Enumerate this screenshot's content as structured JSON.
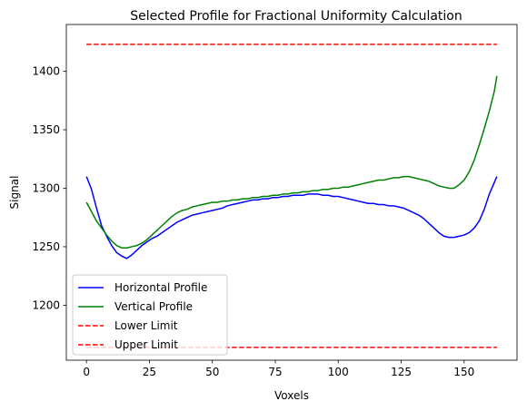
{
  "chart_data": {
    "type": "line",
    "title": "Selected Profile for Fractional Uniformity Calculation",
    "xlabel": "Voxels",
    "ylabel": "Signal",
    "xlim": [
      -8,
      171
    ],
    "ylim": [
      1153,
      1440
    ],
    "xticks": [
      0,
      25,
      50,
      75,
      100,
      125,
      150
    ],
    "yticks": [
      1200,
      1250,
      1300,
      1350,
      1400
    ],
    "grid": false,
    "legend_position": "lower-left",
    "series": [
      {
        "name": "Horizontal Profile",
        "color": "#0000ff",
        "style": "solid",
        "x": [
          0,
          2,
          4,
          6,
          8,
          10,
          12,
          14,
          16,
          18,
          20,
          22,
          24,
          26,
          28,
          30,
          32,
          34,
          36,
          38,
          40,
          42,
          44,
          46,
          48,
          50,
          52,
          54,
          56,
          58,
          60,
          62,
          64,
          66,
          68,
          70,
          72,
          74,
          76,
          78,
          80,
          82,
          84,
          86,
          88,
          90,
          92,
          94,
          96,
          98,
          100,
          102,
          104,
          106,
          108,
          110,
          112,
          114,
          116,
          118,
          120,
          122,
          124,
          126,
          128,
          130,
          132,
          134,
          136,
          138,
          140,
          142,
          144,
          146,
          148,
          150,
          152,
          154,
          156,
          158,
          160,
          162,
          163
        ],
        "values": [
          1310,
          1299,
          1283,
          1268,
          1259,
          1251,
          1245,
          1242,
          1240,
          1243,
          1247,
          1251,
          1254,
          1257,
          1259,
          1262,
          1265,
          1268,
          1271,
          1273,
          1275,
          1277,
          1278,
          1279,
          1280,
          1281,
          1282,
          1283,
          1285,
          1286,
          1287,
          1288,
          1289,
          1290,
          1290,
          1291,
          1291,
          1292,
          1292,
          1293,
          1293,
          1294,
          1294,
          1294,
          1295,
          1295,
          1295,
          1294,
          1294,
          1293,
          1293,
          1292,
          1291,
          1290,
          1289,
          1288,
          1287,
          1287,
          1286,
          1286,
          1285,
          1285,
          1284,
          1283,
          1281,
          1279,
          1277,
          1274,
          1270,
          1266,
          1262,
          1259,
          1258,
          1258,
          1259,
          1260,
          1262,
          1266,
          1272,
          1282,
          1295,
          1305,
          1310
        ]
      },
      {
        "name": "Vertical Profile",
        "color": "#008000",
        "style": "solid",
        "x": [
          0,
          2,
          4,
          6,
          8,
          10,
          12,
          14,
          16,
          18,
          20,
          22,
          24,
          26,
          28,
          30,
          32,
          34,
          36,
          38,
          40,
          42,
          44,
          46,
          48,
          50,
          52,
          54,
          56,
          58,
          60,
          62,
          64,
          66,
          68,
          70,
          72,
          74,
          76,
          78,
          80,
          82,
          84,
          86,
          88,
          90,
          92,
          94,
          96,
          98,
          100,
          102,
          104,
          106,
          108,
          110,
          112,
          114,
          116,
          118,
          120,
          122,
          124,
          126,
          128,
          130,
          132,
          134,
          136,
          138,
          140,
          142,
          144,
          146,
          148,
          150,
          152,
          154,
          156,
          158,
          160,
          162,
          163
        ],
        "values": [
          1288,
          1280,
          1272,
          1266,
          1260,
          1255,
          1251,
          1249,
          1249,
          1250,
          1251,
          1253,
          1256,
          1260,
          1264,
          1268,
          1272,
          1276,
          1279,
          1281,
          1282,
          1284,
          1285,
          1286,
          1287,
          1288,
          1288,
          1289,
          1289,
          1290,
          1290,
          1291,
          1291,
          1292,
          1292,
          1293,
          1293,
          1294,
          1294,
          1295,
          1295,
          1296,
          1296,
          1297,
          1297,
          1298,
          1298,
          1299,
          1299,
          1300,
          1300,
          1301,
          1301,
          1302,
          1303,
          1304,
          1305,
          1306,
          1307,
          1307,
          1308,
          1309,
          1309,
          1310,
          1310,
          1309,
          1308,
          1307,
          1306,
          1304,
          1302,
          1301,
          1300,
          1300,
          1303,
          1307,
          1314,
          1324,
          1337,
          1351,
          1366,
          1383,
          1396
        ]
      },
      {
        "name": "Lower Limit",
        "color": "#ff0000",
        "style": "dashed",
        "x": [
          0,
          163
        ],
        "values": [
          1423,
          1423
        ]
      },
      {
        "name": "Upper Limit",
        "color": "#ff0000",
        "style": "dashed",
        "x": [
          0,
          163
        ],
        "values": [
          1164,
          1164
        ]
      }
    ]
  }
}
